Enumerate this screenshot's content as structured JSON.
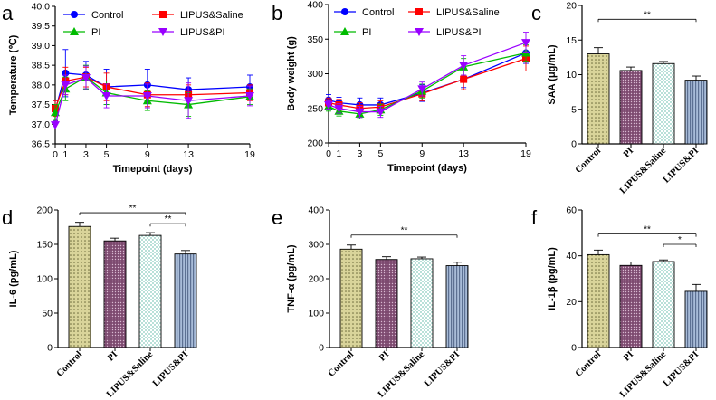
{
  "chart_data": [
    {
      "panel": "a",
      "type": "line",
      "xlabel": "Timepoint (days)",
      "ylabel": "Temperature (℃)",
      "x": [
        0,
        1,
        3,
        5,
        9,
        13,
        19
      ],
      "xticks": [
        0,
        1,
        3,
        5,
        9,
        13,
        19
      ],
      "xlim": [
        0,
        19
      ],
      "ylim": [
        36.5,
        40.0
      ],
      "yticks": [
        "36.5",
        "37.0",
        "37.5",
        "38.0",
        "38.5",
        "39.0",
        "39.5",
        "40.0"
      ],
      "series": [
        {
          "name": "Control",
          "color": "#0000ff",
          "marker": "circle",
          "values": [
            37.35,
            38.3,
            38.25,
            37.95,
            38.0,
            37.88,
            37.95
          ],
          "errors": [
            0.25,
            0.6,
            0.35,
            0.45,
            0.4,
            0.3,
            0.3
          ]
        },
        {
          "name": "LIPUS&Saline",
          "color": "#ff0000",
          "marker": "square",
          "values": [
            37.4,
            38.1,
            38.2,
            37.95,
            37.75,
            37.75,
            37.8
          ],
          "errors": [
            0.2,
            0.35,
            0.25,
            0.35,
            0.3,
            0.25,
            0.2
          ]
        },
        {
          "name": "PI",
          "color": "#00bb00",
          "marker": "triangle-up",
          "values": [
            37.3,
            37.9,
            38.2,
            37.8,
            37.6,
            37.5,
            37.7
          ],
          "errors": [
            0.2,
            0.3,
            0.3,
            0.3,
            0.25,
            0.3,
            0.2
          ]
        },
        {
          "name": "LIPUS&PI",
          "color": "#9900ff",
          "marker": "triangle-down",
          "values": [
            36.98,
            38.0,
            38.18,
            37.72,
            37.72,
            37.6,
            37.72
          ],
          "errors": [
            0.1,
            0.25,
            0.3,
            0.3,
            0.3,
            0.45,
            0.25
          ]
        }
      ]
    },
    {
      "panel": "b",
      "type": "line",
      "xlabel": "Timepoint (days)",
      "ylabel": "Body weight (g)",
      "x": [
        0,
        1,
        3,
        5,
        9,
        13,
        19
      ],
      "xticks": [
        0,
        1,
        3,
        5,
        9,
        13,
        19
      ],
      "xlim": [
        0,
        19
      ],
      "ylim": [
        200,
        400
      ],
      "yticks": [
        "200",
        "250",
        "300",
        "350",
        "400"
      ],
      "series": [
        {
          "name": "Control",
          "color": "#0000ff",
          "marker": "circle",
          "values": [
            262,
            258,
            255,
            255,
            272,
            292,
            330
          ],
          "errors": [
            8,
            8,
            10,
            10,
            12,
            12,
            15
          ]
        },
        {
          "name": "LIPUS&Saline",
          "color": "#ff0000",
          "marker": "square",
          "values": [
            258,
            255,
            250,
            252,
            271,
            292,
            322
          ],
          "errors": [
            7,
            8,
            8,
            9,
            10,
            15,
            18
          ]
        },
        {
          "name": "PI",
          "color": "#00bb00",
          "marker": "triangle-up",
          "values": [
            253,
            246,
            242,
            248,
            275,
            310,
            330
          ],
          "errors": [
            7,
            7,
            7,
            8,
            10,
            12,
            12
          ]
        },
        {
          "name": "LIPUS&PI",
          "color": "#9900ff",
          "marker": "triangle-down",
          "values": [
            255,
            250,
            245,
            245,
            278,
            312,
            345
          ],
          "errors": [
            6,
            7,
            8,
            8,
            10,
            14,
            15
          ]
        }
      ]
    },
    {
      "panel": "c",
      "type": "bar",
      "ylabel": "SAA (μg/mL)",
      "categories": [
        "Control",
        "PI",
        "LIPUS&Saline",
        "LIPUS&PI"
      ],
      "values": [
        13.0,
        10.6,
        11.6,
        9.2
      ],
      "errors": [
        0.9,
        0.5,
        0.3,
        0.6
      ],
      "ylim": [
        0,
        20
      ],
      "yticks": [
        "0",
        "5",
        "10",
        "15",
        "20"
      ],
      "significance": [
        {
          "from": 0,
          "to": 3,
          "label": "**",
          "at": 18.0
        }
      ]
    },
    {
      "panel": "d",
      "type": "bar",
      "ylabel": "IL-6 (pg/mL)",
      "categories": [
        "Control",
        "PI",
        "LIPUS&Saline",
        "LIPUS&PI"
      ],
      "values": [
        176,
        155,
        163,
        136
      ],
      "errors": [
        6,
        4,
        4,
        5
      ],
      "ylim": [
        0,
        200
      ],
      "yticks": [
        "0",
        "50",
        "100",
        "150",
        "200"
      ],
      "significance": [
        {
          "from": 0,
          "to": 3,
          "label": "**",
          "at": 196
        },
        {
          "from": 2,
          "to": 3,
          "label": "**",
          "at": 180
        }
      ]
    },
    {
      "panel": "e",
      "type": "bar",
      "ylabel": "TNF-α (pg/mL)",
      "categories": [
        "Control",
        "PI",
        "LIPUS&Saline",
        "LIPUS&PI"
      ],
      "values": [
        286,
        256,
        258,
        238
      ],
      "errors": [
        12,
        8,
        5,
        10
      ],
      "ylim": [
        0,
        400
      ],
      "yticks": [
        "0",
        "100",
        "200",
        "300",
        "400"
      ],
      "significance": [
        {
          "from": 0,
          "to": 3,
          "label": "**",
          "at": 327
        }
      ]
    },
    {
      "panel": "f",
      "type": "bar",
      "ylabel": "IL-1β (pg/mL)",
      "categories": [
        "Control",
        "PI",
        "LIPUS&Saline",
        "LIPUS&PI"
      ],
      "values": [
        40.5,
        35.8,
        37.5,
        24.5
      ],
      "errors": [
        2.0,
        1.5,
        0.7,
        3.0
      ],
      "ylim": [
        0,
        60
      ],
      "yticks": [
        "0",
        "20",
        "40",
        "60"
      ],
      "significance": [
        {
          "from": 0,
          "to": 3,
          "label": "**",
          "at": 49.5
        },
        {
          "from": 2,
          "to": 3,
          "label": "*",
          "at": 45.0
        }
      ]
    }
  ],
  "bar_styles": [
    {
      "category": "Control",
      "fill": "#d9d49a",
      "pattern": "dots"
    },
    {
      "category": "PI",
      "fill": "#8e5a80",
      "pattern": "dense-dots"
    },
    {
      "category": "LIPUS&Saline",
      "fill": "#e3f2ef",
      "pattern": "checker"
    },
    {
      "category": "LIPUS&PI",
      "fill": "#8da4c4",
      "pattern": "vertical-lines"
    }
  ]
}
